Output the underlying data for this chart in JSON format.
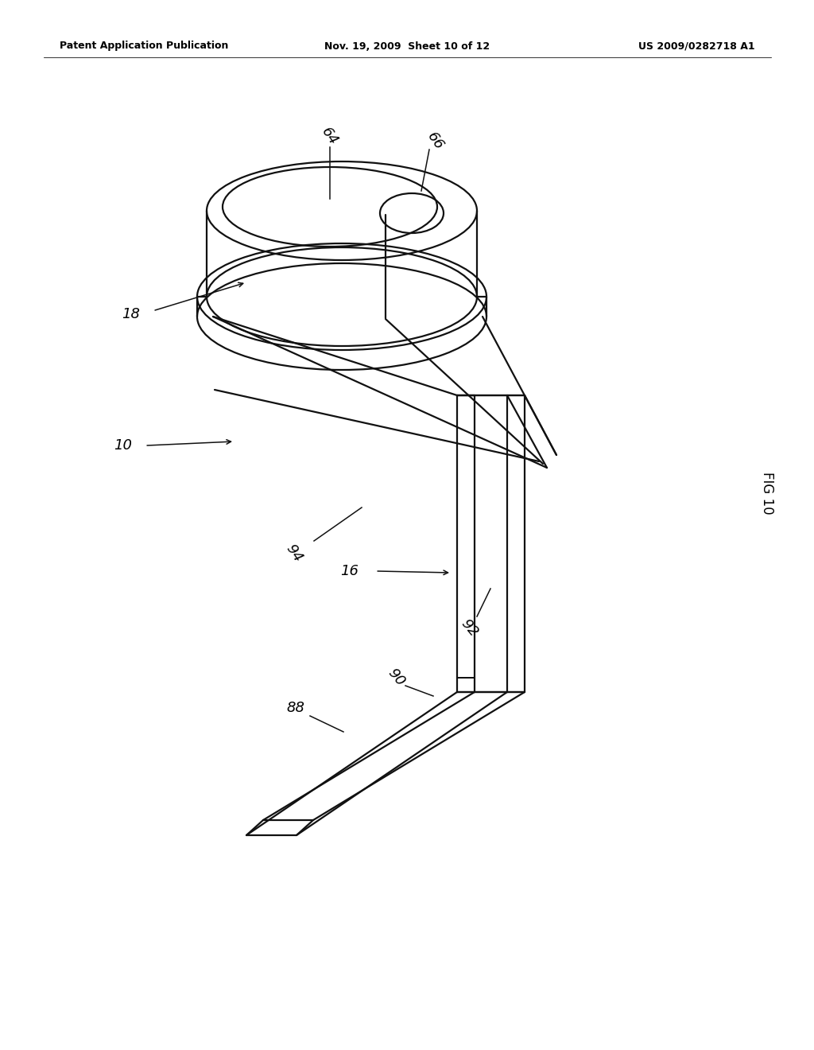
{
  "bg_color": "#ffffff",
  "header_left": "Patent Application Publication",
  "header_mid": "Nov. 19, 2009  Sheet 10 of 12",
  "header_right": "US 2009/0282718 A1",
  "fig_label": "FIG 10",
  "line_color": "#111111",
  "line_width": 1.6
}
